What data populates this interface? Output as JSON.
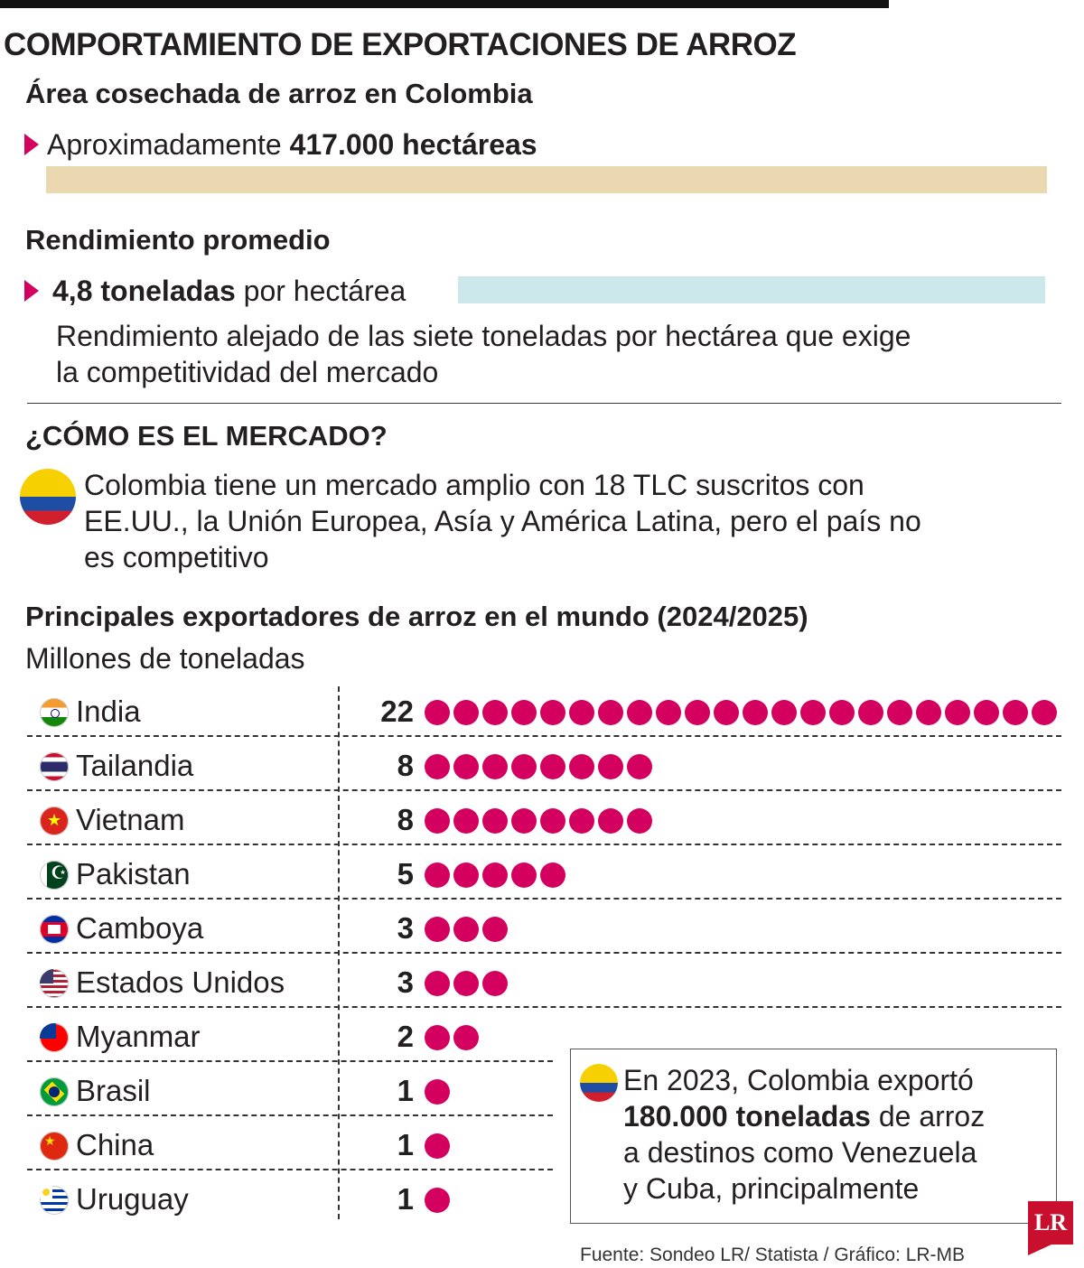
{
  "title": "COMPORTAMIENTO DE EXPORTACIONES DE ARROZ",
  "area": {
    "heading": "Área cosechada de arroz en Colombia",
    "prefix": "Aproximadamente",
    "value": "417.000 hectáreas",
    "bar_color": "#ead8b1"
  },
  "rendimiento": {
    "heading": "Rendimiento promedio",
    "value": "4,8 toneladas",
    "suffix": "por hectárea",
    "note_line1": "Rendimiento alejado de las siete toneladas por hectárea que exige",
    "note_line2": "la competitividad del mercado",
    "bar_color": "#cce8ea"
  },
  "mercado": {
    "heading": "¿CÓMO ES EL MERCADO?",
    "line1": "Colombia tiene un mercado amplio con 18 TLC suscritos con",
    "line2": "EE.UU., la Unión Europea, Asía y América Latina, pero el país no",
    "line3": "es competitivo"
  },
  "chart_data": {
    "type": "bar",
    "title": "Principales exportadores de arroz en el mundo (2024/2025)",
    "ylabel": "Millones de toneladas",
    "categories": [
      "India",
      "Tailandia",
      "Vietnam",
      "Pakistan",
      "Camboya",
      "Estados Unidos",
      "Myanmar",
      "Brasil",
      "China",
      "Uruguay"
    ],
    "values": [
      22,
      8,
      8,
      5,
      3,
      3,
      2,
      1,
      1,
      1
    ],
    "value_labels": [
      "22",
      "8",
      "8",
      "5",
      "3",
      "3",
      "2",
      "1",
      "1",
      "1"
    ],
    "flags": [
      "india-flag-icon",
      "thailand-flag-icon",
      "vietnam-flag-icon",
      "pakistan-flag-icon",
      "cambodia-flag-icon",
      "usa-flag-icon",
      "myanmar-flag-icon",
      "brazil-flag-icon",
      "china-flag-icon",
      "uruguay-flag-icon"
    ],
    "dot_color": "#d4005f",
    "marker": "one dot per million tons"
  },
  "callout": {
    "line1": "En 2023, Colombia exportó",
    "bold": "180.000 toneladas",
    "line2_rest": " de arroz",
    "line3": "a destinos como Venezuela",
    "line4": "y Cuba, principalmente"
  },
  "source": "Fuente:  Sondeo LR/ Statista / Gráfico: LR-MB",
  "logo": "LR",
  "colors": {
    "accent": "#d4005f",
    "text": "#231f20"
  }
}
